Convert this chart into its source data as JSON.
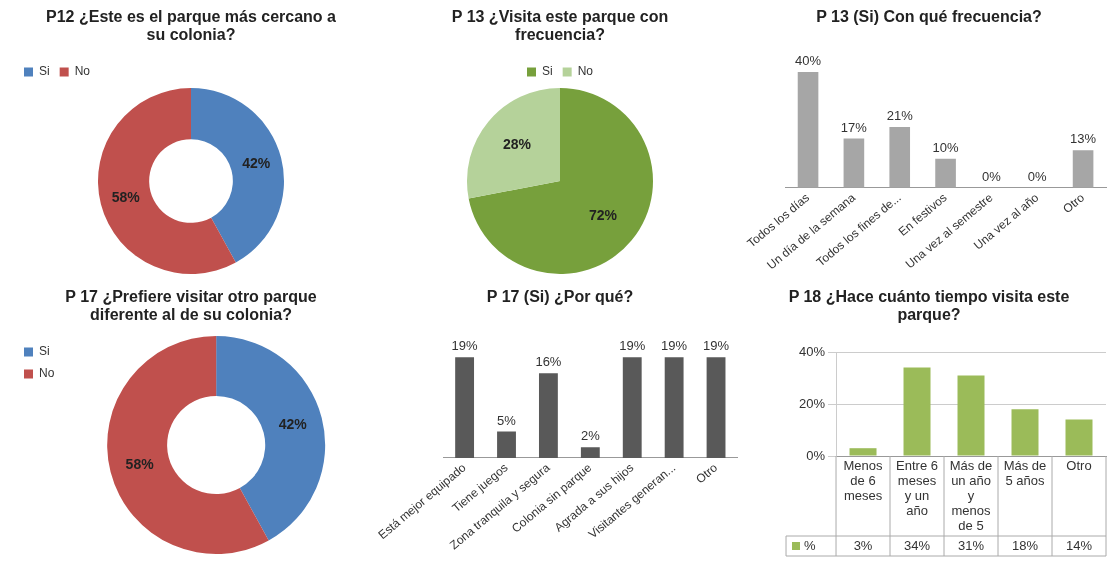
{
  "chart_data": [
    {
      "type": "donut",
      "title": "P12 ¿Este es el parque más cercano a su colonia?",
      "categories": [
        "Si",
        "No"
      ],
      "values": [
        42,
        58
      ],
      "colors": [
        "#4f81bd",
        "#c0504d"
      ],
      "value_labels": [
        "42%",
        "58%"
      ],
      "legend": "top left"
    },
    {
      "type": "pie",
      "title": "P 13 ¿Visita este parque con frecuencia?",
      "categories": [
        "Si",
        "No"
      ],
      "values": [
        72,
        28
      ],
      "colors": [
        "#77a03c",
        "#b5d29a"
      ],
      "value_labels": [
        "72%",
        "28%"
      ],
      "legend": "top"
    },
    {
      "type": "bar",
      "title": "P 13 (Si) Con qué frecuencia?",
      "categories": [
        "Todos los días",
        "Un día de la semana",
        "Todos los fines de...",
        "En festivos",
        "Una vez al semestre",
        "Una vez al año",
        "Otro"
      ],
      "values": [
        40,
        17,
        21,
        10,
        0,
        0,
        13
      ],
      "value_labels": [
        "40%",
        "17%",
        "21%",
        "10%",
        "0%",
        "0%",
        "13%"
      ],
      "color": "#a6a6a6"
    },
    {
      "type": "donut",
      "title": "P 17 ¿Prefiere visitar otro parque diferente al de su colonia?",
      "categories": [
        "Si",
        "No"
      ],
      "values": [
        42,
        58
      ],
      "colors": [
        "#4f81bd",
        "#c0504d"
      ],
      "value_labels": [
        "42%",
        "58%"
      ],
      "legend": "left"
    },
    {
      "type": "bar",
      "title": "P 17 (Si) ¿Por qué?",
      "categories": [
        "Está mejor equipado",
        "Tiene juegos",
        "Zona tranquila y segura",
        "Colonia sin parque",
        "Agrada a sus hijos",
        "Visitantes generan...",
        "Otro"
      ],
      "values": [
        19,
        5,
        16,
        2,
        19,
        19,
        19
      ],
      "value_labels": [
        "19%",
        "5%",
        "16%",
        "2%",
        "19%",
        "19%",
        "19%"
      ],
      "color": "#595959"
    },
    {
      "type": "bar",
      "title": "P 18 ¿Hace cuánto tiempo visita este parque?",
      "categories": [
        "Menos de 6 meses",
        "Entre 6 meses y un año",
        "Más de un año y menos de 5",
        "Más de 5 años",
        "Otro"
      ],
      "series": [
        {
          "name": "%",
          "color": "#9bbb59",
          "values": [
            3,
            34,
            31,
            18,
            14
          ],
          "value_labels": [
            "3%",
            "34%",
            "31%",
            "18%",
            "14%"
          ]
        }
      ],
      "ylim": [
        0,
        40
      ],
      "yticks": [
        {
          "value": 0,
          "label": "0%"
        },
        {
          "value": 20,
          "label": "20%"
        },
        {
          "value": 40,
          "label": "40%"
        }
      ],
      "grid": "y",
      "data_labels": true,
      "legend": "bottom"
    }
  ]
}
